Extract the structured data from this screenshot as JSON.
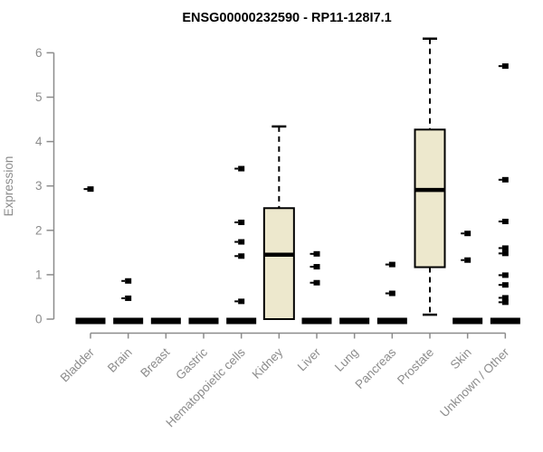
{
  "chart_data": {
    "type": "box",
    "title": "ENSG00000232590 - RP11-128I7.1",
    "ylabel": "Expression",
    "xlabel": "",
    "ylim": [
      0,
      6
    ],
    "yticks": [
      0,
      1,
      2,
      3,
      4,
      5,
      6
    ],
    "grid": false,
    "legend": false,
    "categories": [
      "Bladder",
      "Brain",
      "Breast",
      "Gastric",
      "Hematopoietic cells",
      "Kidney",
      "Liver",
      "Lung",
      "Pancreas",
      "Prostate",
      "Skin",
      "Unknown / Other"
    ],
    "series": [
      {
        "name": "Bladder",
        "q1": 0,
        "median": 0,
        "q3": 0,
        "whisker_low": 0,
        "whisker_high": 0,
        "outliers": [
          2.93
        ]
      },
      {
        "name": "Brain",
        "q1": 0,
        "median": 0,
        "q3": 0,
        "whisker_low": 0,
        "whisker_high": 0,
        "outliers": [
          0.86,
          0.47
        ]
      },
      {
        "name": "Breast",
        "q1": 0,
        "median": 0,
        "q3": 0,
        "whisker_low": 0,
        "whisker_high": 0,
        "outliers": []
      },
      {
        "name": "Gastric",
        "q1": 0,
        "median": 0,
        "q3": 0,
        "whisker_low": 0,
        "whisker_high": 0,
        "outliers": []
      },
      {
        "name": "Hematopoietic cells",
        "q1": 0,
        "median": 0,
        "q3": 0,
        "whisker_low": 0,
        "whisker_high": 0,
        "outliers": [
          3.39,
          2.18,
          1.74,
          1.42,
          0.4
        ]
      },
      {
        "name": "Kidney",
        "q1": 0,
        "median": 1.45,
        "q3": 2.5,
        "whisker_low": 0,
        "whisker_high": 4.34,
        "outliers": []
      },
      {
        "name": "Liver",
        "q1": 0,
        "median": 0,
        "q3": 0,
        "whisker_low": 0,
        "whisker_high": 0,
        "outliers": [
          1.47,
          1.18,
          0.82
        ]
      },
      {
        "name": "Lung",
        "q1": 0,
        "median": 0,
        "q3": 0,
        "whisker_low": 0,
        "whisker_high": 0,
        "outliers": []
      },
      {
        "name": "Pancreas",
        "q1": 0,
        "median": 0,
        "q3": 0,
        "whisker_low": 0,
        "whisker_high": 0,
        "outliers": [
          1.23,
          0.58
        ]
      },
      {
        "name": "Prostate",
        "q1": 1.17,
        "median": 2.91,
        "q3": 4.27,
        "whisker_low": 0.1,
        "whisker_high": 6.32,
        "outliers": []
      },
      {
        "name": "Skin",
        "q1": 0,
        "median": 0,
        "q3": 0,
        "whisker_low": 0,
        "whisker_high": 0,
        "outliers": [
          1.93,
          1.33
        ]
      },
      {
        "name": "Unknown / Other",
        "q1": 0,
        "median": 0,
        "q3": 0,
        "whisker_low": 0,
        "whisker_high": 0,
        "outliers": [
          5.7,
          3.14,
          2.2,
          1.6,
          1.48,
          0.99,
          0.77,
          0.48,
          0.38
        ]
      }
    ],
    "colors": {
      "box_fill": "#EDE8CD",
      "box_stroke": "#000000",
      "median": "#000000",
      "outlier": "#000000",
      "axis": "#8c8c8c",
      "tick_label": "#8c8c8c",
      "title": "#000000",
      "background": "#ffffff"
    }
  }
}
